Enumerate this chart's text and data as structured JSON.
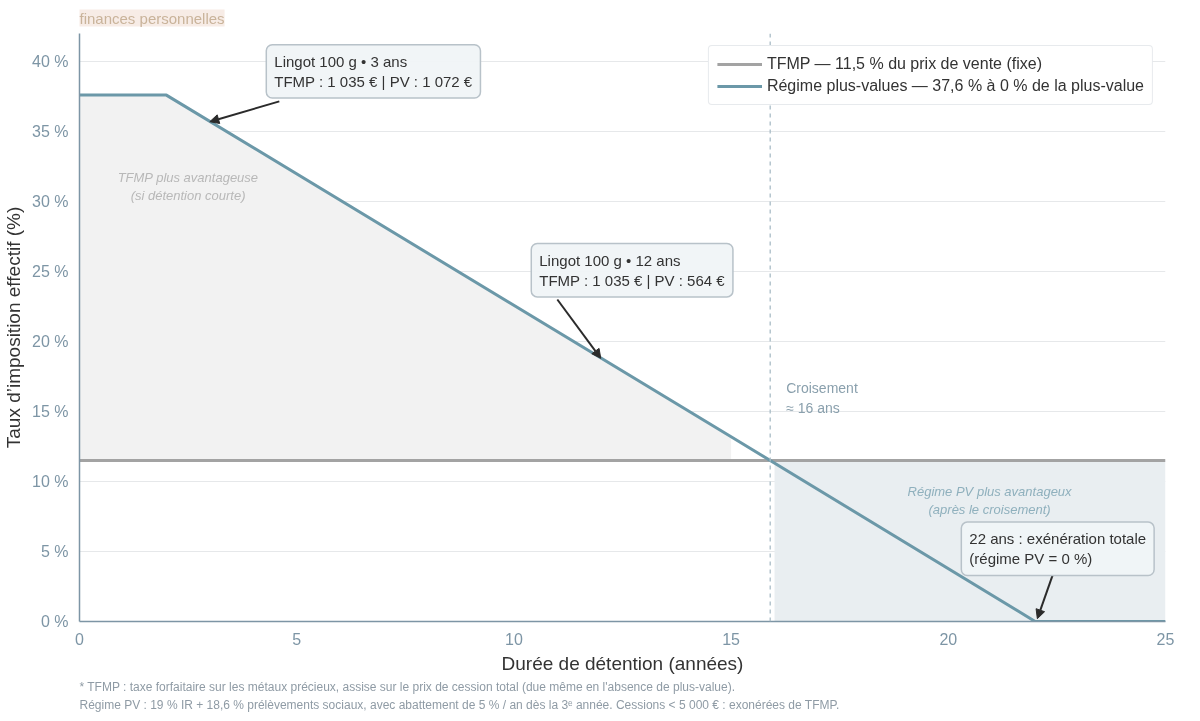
{
  "chart_data": {
    "type": "line",
    "subtitle": "finances personnelles",
    "xlabel": "Durée de détention (années)",
    "ylabel": "Taux d’imposition effectif (%)",
    "xlim": [
      0,
      25
    ],
    "xticks": [
      0,
      5,
      10,
      15,
      20,
      25
    ],
    "ylim": [
      0,
      42
    ],
    "yticks": [
      {
        "value": 0,
        "label": "0 %"
      },
      {
        "value": 5,
        "label": "5 %"
      },
      {
        "value": 10,
        "label": "10 %"
      },
      {
        "value": 15,
        "label": "15 %"
      },
      {
        "value": 20,
        "label": "20 %"
      },
      {
        "value": 25,
        "label": "25 %"
      },
      {
        "value": 30,
        "label": "30 %"
      },
      {
        "value": 35,
        "label": "35 %"
      },
      {
        "value": 40,
        "label": "40 %"
      }
    ],
    "grid": "y",
    "legend": "top right",
    "series": [
      {
        "name": "Régime PV plus avantageux\n(après le croisement)",
        "type": "area",
        "color": "#e9eef1",
        "x": [
          16,
          25
        ],
        "values": [
          11.5,
          11.5
        ]
      },
      {
        "name": "TFMP — 11,5 % du prix de vente (fixe)",
        "color": "#a3a3a3",
        "x": [
          0,
          25
        ],
        "values": [
          11.5,
          11.5
        ]
      },
      {
        "name": "Régime plus-values — 37,6 % à 0 % de la plus-value",
        "color": "#6b98a8",
        "x": [
          0,
          2,
          15,
          22,
          25
        ],
        "values": [
          37.6,
          37.6,
          13.2,
          0,
          0
        ],
        "lower": [
          11.5,
          11.5,
          11.5,
          null,
          null
        ],
        "upper": [
          37.6,
          37.6,
          13.2,
          null,
          null
        ]
      }
    ],
    "ref_lines": [
      {
        "axis": "x",
        "value": 15.9,
        "label": "Croisement\n≈ 16 ans",
        "color": "#a9bcc6",
        "line_style": "dashed"
      }
    ],
    "annotations": [
      "TFMP plus avantageuse\n(si détention courte)",
      {
        "text": "Lingot 100 g • 3 ans\nTFMP : 1 035 € | PV : 1 072 €",
        "x": 3,
        "y": 35.7
      },
      {
        "text": "Lingot 100 g • 12 ans\nTFMP : 1 035 € | PV : 564 €",
        "x": 12,
        "y": 18.8
      },
      {
        "text": "22 ans : exénération totale\n(régime PV = 0 %)",
        "x": 22,
        "y": 0
      },
      "* TFMP : taxe forfaitaire sur les métaux précieux, assise sur le prix de cession total (due même en l'absence de plus-value).",
      "Régime PV : 19 % IR + 18,6 % prélèvements sociaux, avec abattement de 5 % / an dès la 3ᵉ année.  Cessions < 5 000 € : exonérées de TFMP."
    ]
  }
}
